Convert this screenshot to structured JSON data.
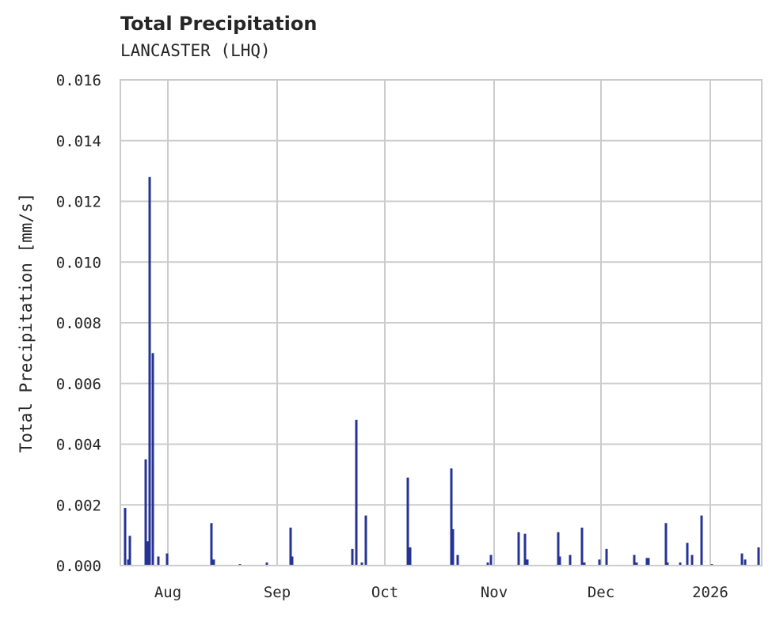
{
  "header": {
    "title": "Total Precipitation",
    "subtitle": "LANCASTER (LHQ)"
  },
  "colors": {
    "bar": "#253494",
    "grid": "#cccccc",
    "text": "#262626"
  },
  "chart_data": {
    "type": "bar",
    "title": "Total Precipitation",
    "subtitle": "LANCASTER (LHQ)",
    "xlabel": "",
    "ylabel": "Total Precipitation [mm/s]",
    "ylim": [
      0,
      0.016
    ],
    "yticks": [
      "0.000",
      "0.002",
      "0.004",
      "0.006",
      "0.008",
      "0.010",
      "0.012",
      "0.014",
      "0.016"
    ],
    "xticks": [
      "Aug",
      "Sep",
      "Oct",
      "Nov",
      "Dec",
      "2026"
    ],
    "grid": true,
    "legend": null,
    "x": [
      "Jul 19",
      "Jul 20",
      "Jul 21",
      "Jul 25",
      "Jul 26",
      "Jul 26b",
      "Jul 27",
      "Jul 28",
      "Jul 30",
      "Aug 13",
      "Aug 14",
      "Aug 21",
      "Aug 28",
      "Sep 3",
      "Sep 4",
      "Sep 21",
      "Sep 22",
      "Sep 24",
      "Sep 25",
      "Oct 6",
      "Oct 7",
      "Oct 18",
      "Oct 19",
      "Oct 20",
      "Oct 29",
      "Oct 30",
      "Nov 7",
      "Nov 9",
      "Nov 10",
      "Nov 18",
      "Nov 19",
      "Nov 21",
      "Nov 25",
      "Nov 26",
      "Nov 30",
      "Dec 2",
      "Dec 10",
      "Dec 11",
      "Dec 14",
      "Dec 15",
      "Dec 20",
      "Dec 21",
      "Dec 24",
      "Dec 26",
      "Dec 27",
      "Dec 29",
      "Jan 1",
      "Jan 9",
      "Jan 10",
      "Jan 14"
    ],
    "values": [
      0.0019,
      0.0002,
      0.00098,
      0.0035,
      0.0008,
      0.0128,
      0.007,
      0.0003,
      0.0004,
      0.0014,
      0.0002,
      5e-05,
      0.0001,
      0.00125,
      0.0003,
      0.00055,
      0.0048,
      0.0001,
      0.00165,
      0.0029,
      0.0006,
      0.0032,
      0.0012,
      0.00035,
      0.0001,
      0.00035,
      0.0011,
      0.00105,
      0.0002,
      0.0011,
      0.0003,
      0.00035,
      0.00125,
      0.0001,
      0.0002,
      0.00055,
      0.00035,
      0.0001,
      0.00025,
      0.00025,
      0.0014,
      0.0001,
      0.0001,
      0.00075,
      0.00035,
      0.00165,
      5e-05,
      0.0004,
      0.0002,
      0.0006
    ]
  }
}
